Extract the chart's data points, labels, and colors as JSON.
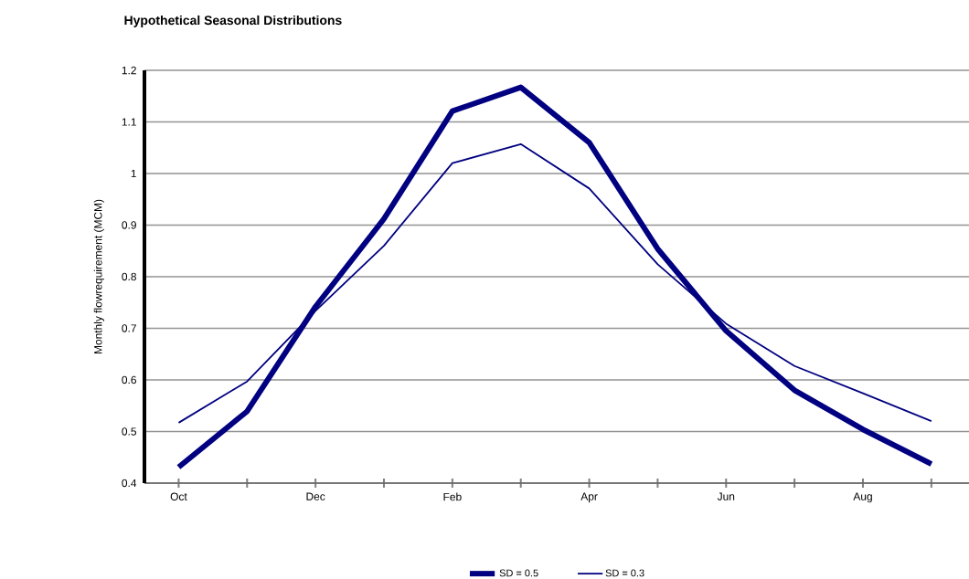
{
  "chart_data": {
    "type": "line",
    "title": "Hypothetical Seasonal Distributions",
    "ylabel": "Monthly flowrequirement (MCM)",
    "categories": [
      "Oct",
      null,
      "Dec",
      null,
      "Feb",
      null,
      "Apr",
      null,
      "Jun",
      null,
      "Aug",
      null
    ],
    "series": [
      {
        "name": "SD = 0.5",
        "color": "#000080",
        "values": [
          0.431,
          0.539,
          0.742,
          0.912,
          1.121,
          1.167,
          1.06,
          0.854,
          0.695,
          0.58,
          0.504,
          0.437
        ]
      },
      {
        "name": "SD = 0.3",
        "color": "#000080",
        "values": [
          0.517,
          0.597,
          0.734,
          0.86,
          1.02,
          1.057,
          0.971,
          0.824,
          0.709,
          0.627,
          0.574,
          0.52
        ]
      }
    ],
    "ylim": [
      0.4,
      1.2
    ],
    "yticks": [
      0.4,
      0.5,
      0.6,
      0.7,
      0.8,
      0.9,
      1,
      1.1,
      1.2
    ],
    "grid": "y",
    "legend": "bottom",
    "marker": "none",
    "line_style": "solid"
  }
}
